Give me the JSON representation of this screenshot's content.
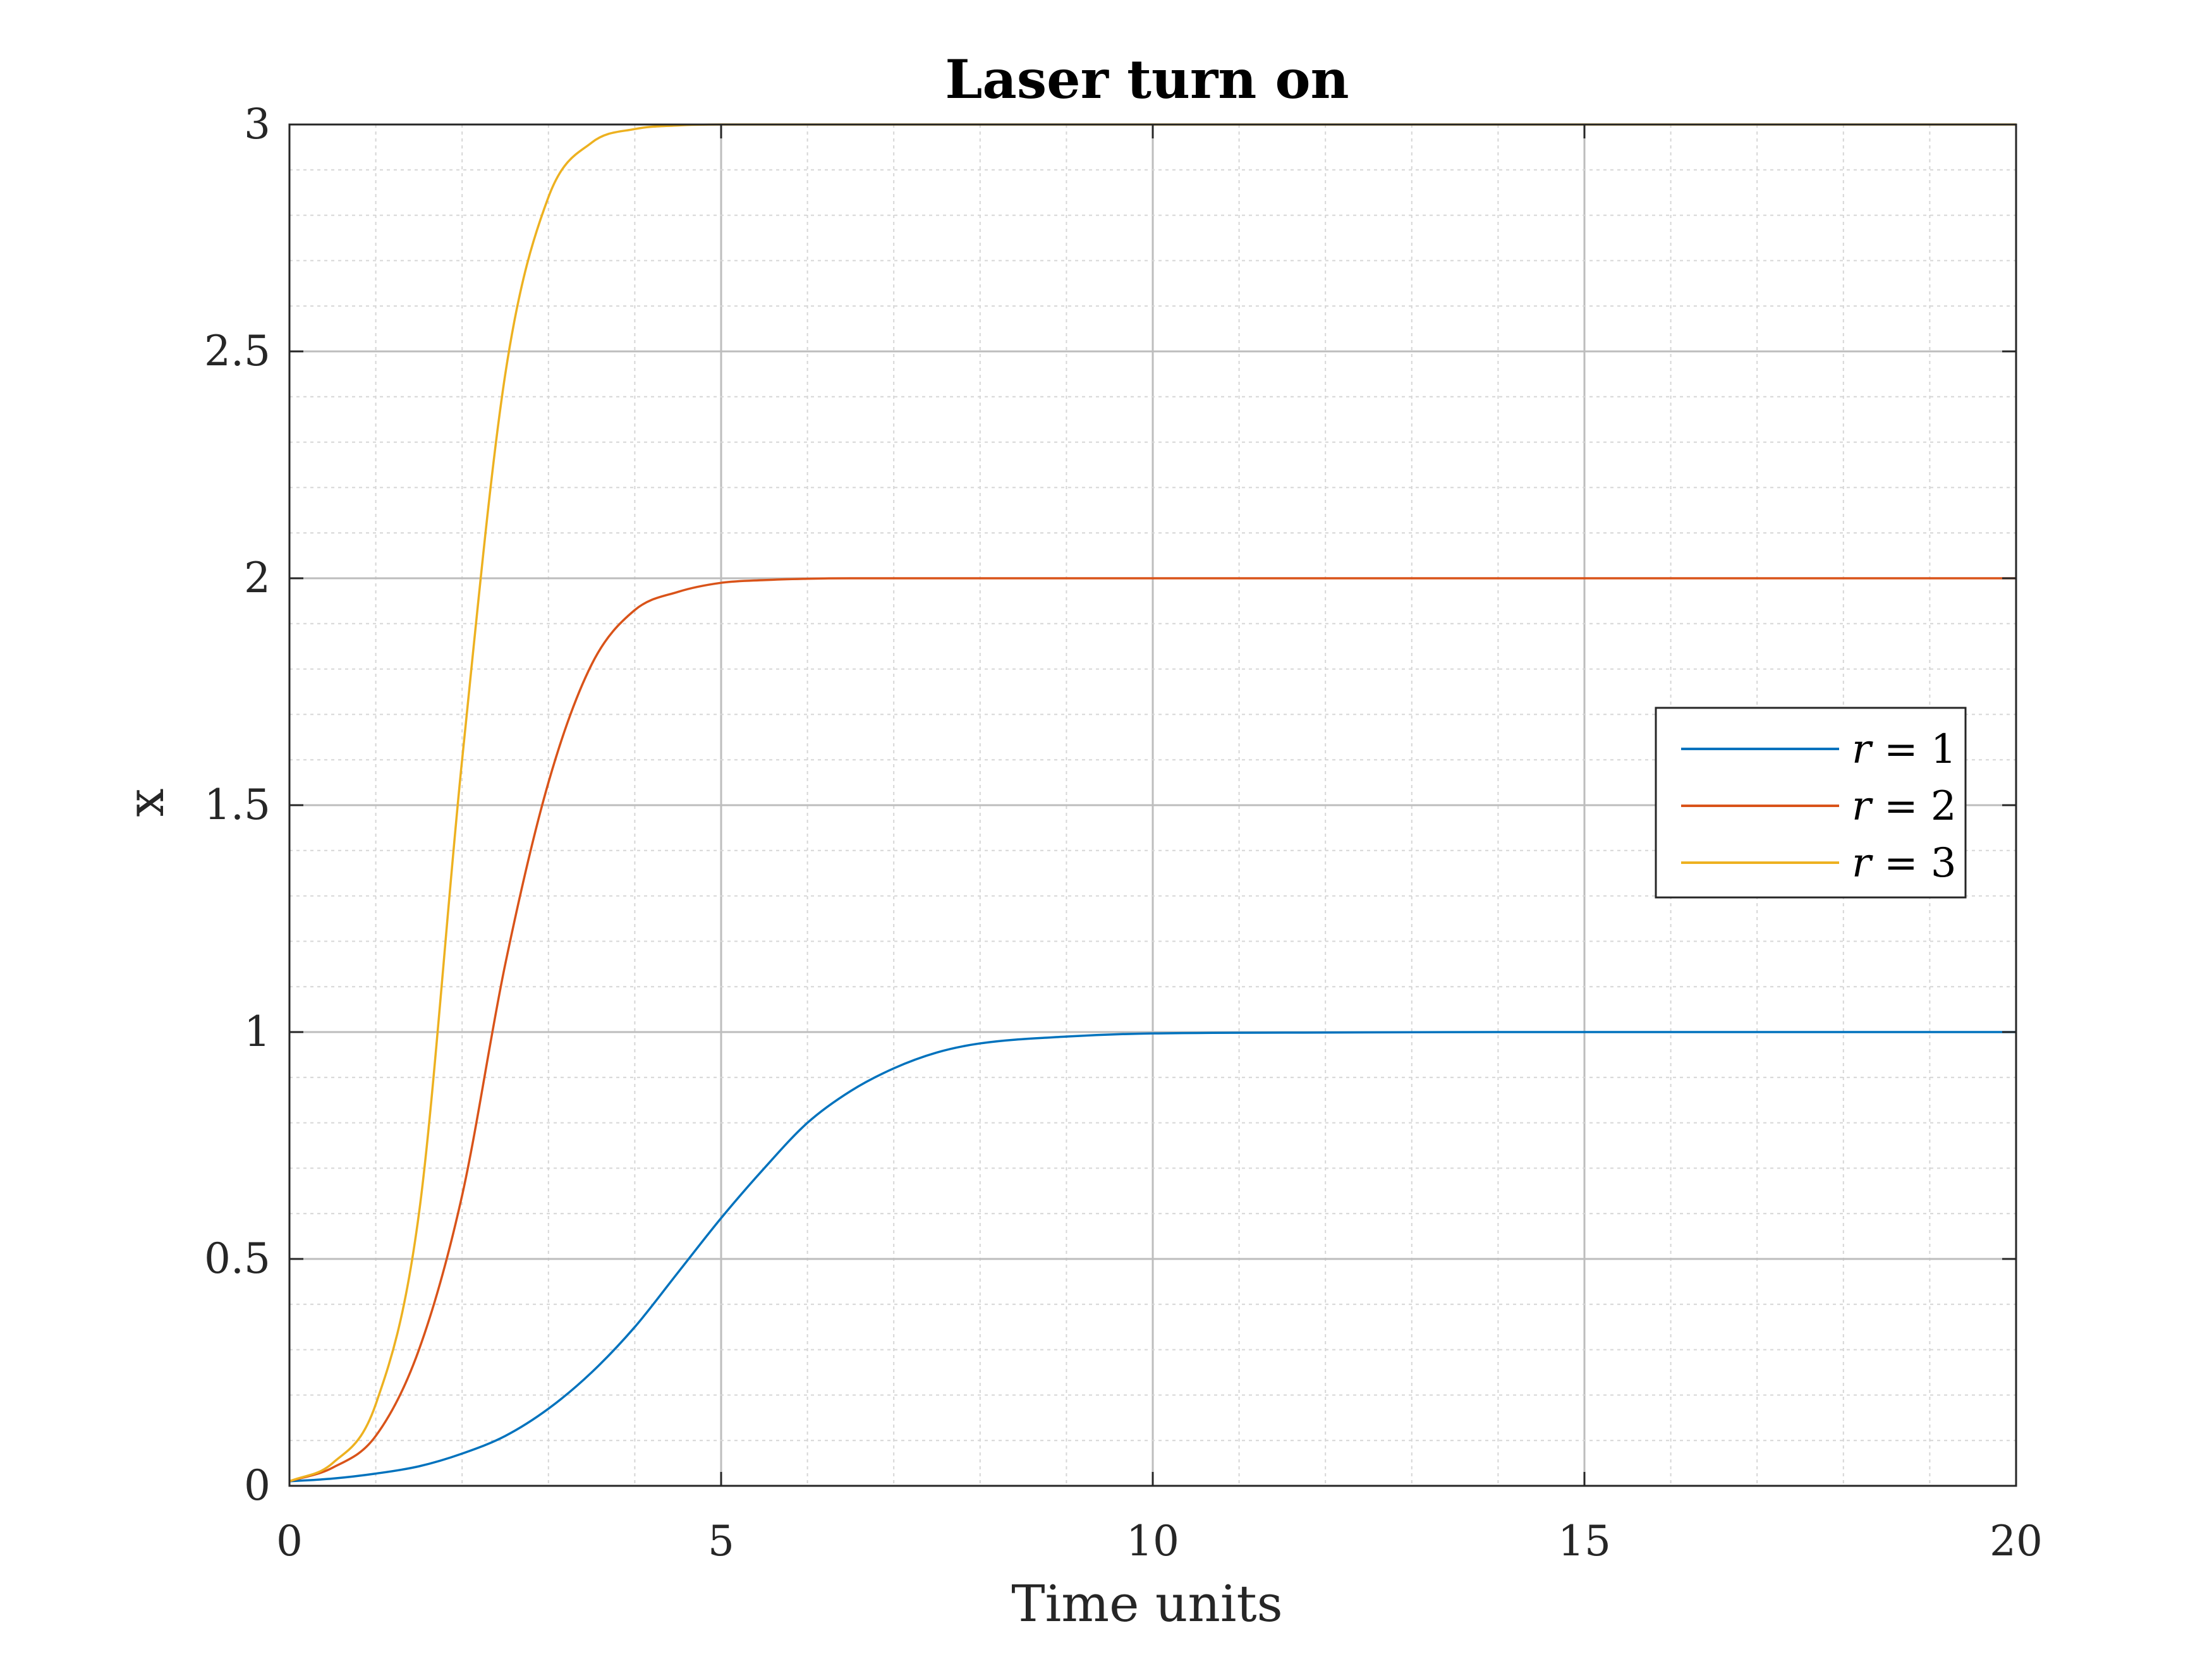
{
  "chart_data": {
    "type": "line",
    "title": "Laser turn on",
    "xlabel": "Time units",
    "ylabel": "x",
    "xlim": [
      0,
      20
    ],
    "ylim": [
      0,
      3
    ],
    "xticks": [
      0,
      5,
      10,
      15,
      20
    ],
    "xtick_labels": [
      "0",
      "5",
      "10",
      "15",
      "20"
    ],
    "yticks": [
      0,
      0.5,
      1,
      1.5,
      2,
      2.5,
      3
    ],
    "ytick_labels": [
      "0",
      "0.5",
      "1",
      "1.5",
      "2",
      "2.5",
      "3"
    ],
    "grid": true,
    "minor_grid": true,
    "legend_position": "right",
    "x": [
      0,
      0.5,
      1,
      1.5,
      2,
      2.5,
      3,
      3.5,
      4,
      4.5,
      5,
      5.5,
      6,
      6.5,
      7,
      7.5,
      8,
      9,
      10,
      12,
      14,
      16,
      18,
      20
    ],
    "series": [
      {
        "name": "r = 1",
        "color": "#0072BD",
        "values": [
          0.01,
          0.016,
          0.027,
          0.043,
          0.071,
          0.11,
          0.17,
          0.25,
          0.35,
          0.47,
          0.59,
          0.7,
          0.8,
          0.87,
          0.92,
          0.955,
          0.975,
          0.99,
          0.997,
          0.999,
          1.0,
          1.0,
          1.0,
          1.0
        ]
      },
      {
        "name": "r = 2",
        "color": "#D95319",
        "values": [
          0.01,
          0.04,
          0.11,
          0.3,
          0.64,
          1.15,
          1.55,
          1.81,
          1.93,
          1.97,
          1.99,
          1.996,
          1.999,
          2.0,
          2.0,
          2.0,
          2.0,
          2.0,
          2.0,
          2.0,
          2.0,
          2.0,
          2.0,
          2.0
        ]
      },
      {
        "name": "r = 3",
        "color": "#EDB120",
        "values": [
          0.01,
          0.05,
          0.18,
          0.6,
          1.6,
          2.45,
          2.84,
          2.96,
          2.99,
          2.998,
          3.0,
          3.0,
          3.0,
          3.0,
          3.0,
          3.0,
          3.0,
          3.0,
          3.0,
          3.0,
          3.0,
          3.0,
          3.0,
          3.0
        ]
      }
    ],
    "legend": [
      {
        "label_var": "r",
        "label_rest": " = 1"
      },
      {
        "label_var": "r",
        "label_rest": " = 2"
      },
      {
        "label_var": "r",
        "label_rest": " = 3"
      }
    ]
  }
}
